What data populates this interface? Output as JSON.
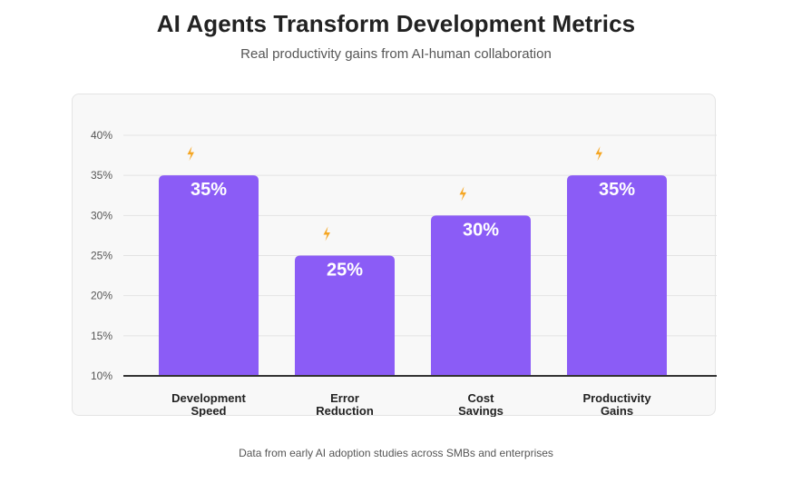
{
  "header": {
    "title": "AI Agents Transform Development Metrics",
    "subtitle": "Real productivity gains from AI-human collaboration"
  },
  "footnote": "Data from early AI adoption studies across SMBs and enterprises",
  "colors": {
    "bar": "#8b5cf6",
    "lightning_icon": "#f5a623",
    "axis_line": "#333333",
    "grid": "#e3e3e3",
    "panel_background": "#f8f8f8"
  },
  "icons": {
    "bar_marker": "lightning-icon"
  },
  "chart_data": {
    "type": "bar",
    "title": "AI Agents Transform Development Metrics",
    "subtitle": "Real productivity gains from AI-human collaboration",
    "xlabel": "",
    "ylabel": "",
    "categories": [
      [
        "Development",
        "Speed"
      ],
      [
        "Error",
        "Reduction"
      ],
      [
        "Cost",
        "Savings"
      ],
      [
        "Productivity",
        "Gains"
      ]
    ],
    "values": [
      35,
      25,
      30,
      35
    ],
    "value_labels": [
      "35%",
      "25%",
      "30%",
      "35%"
    ],
    "ylim": [
      10,
      40
    ],
    "yticks": [
      10,
      15,
      20,
      25,
      30,
      35,
      40
    ],
    "ytick_labels": [
      "10%",
      "15%",
      "20%",
      "25%",
      "30%",
      "35%",
      "40%"
    ],
    "grid": true,
    "legend": "none"
  }
}
